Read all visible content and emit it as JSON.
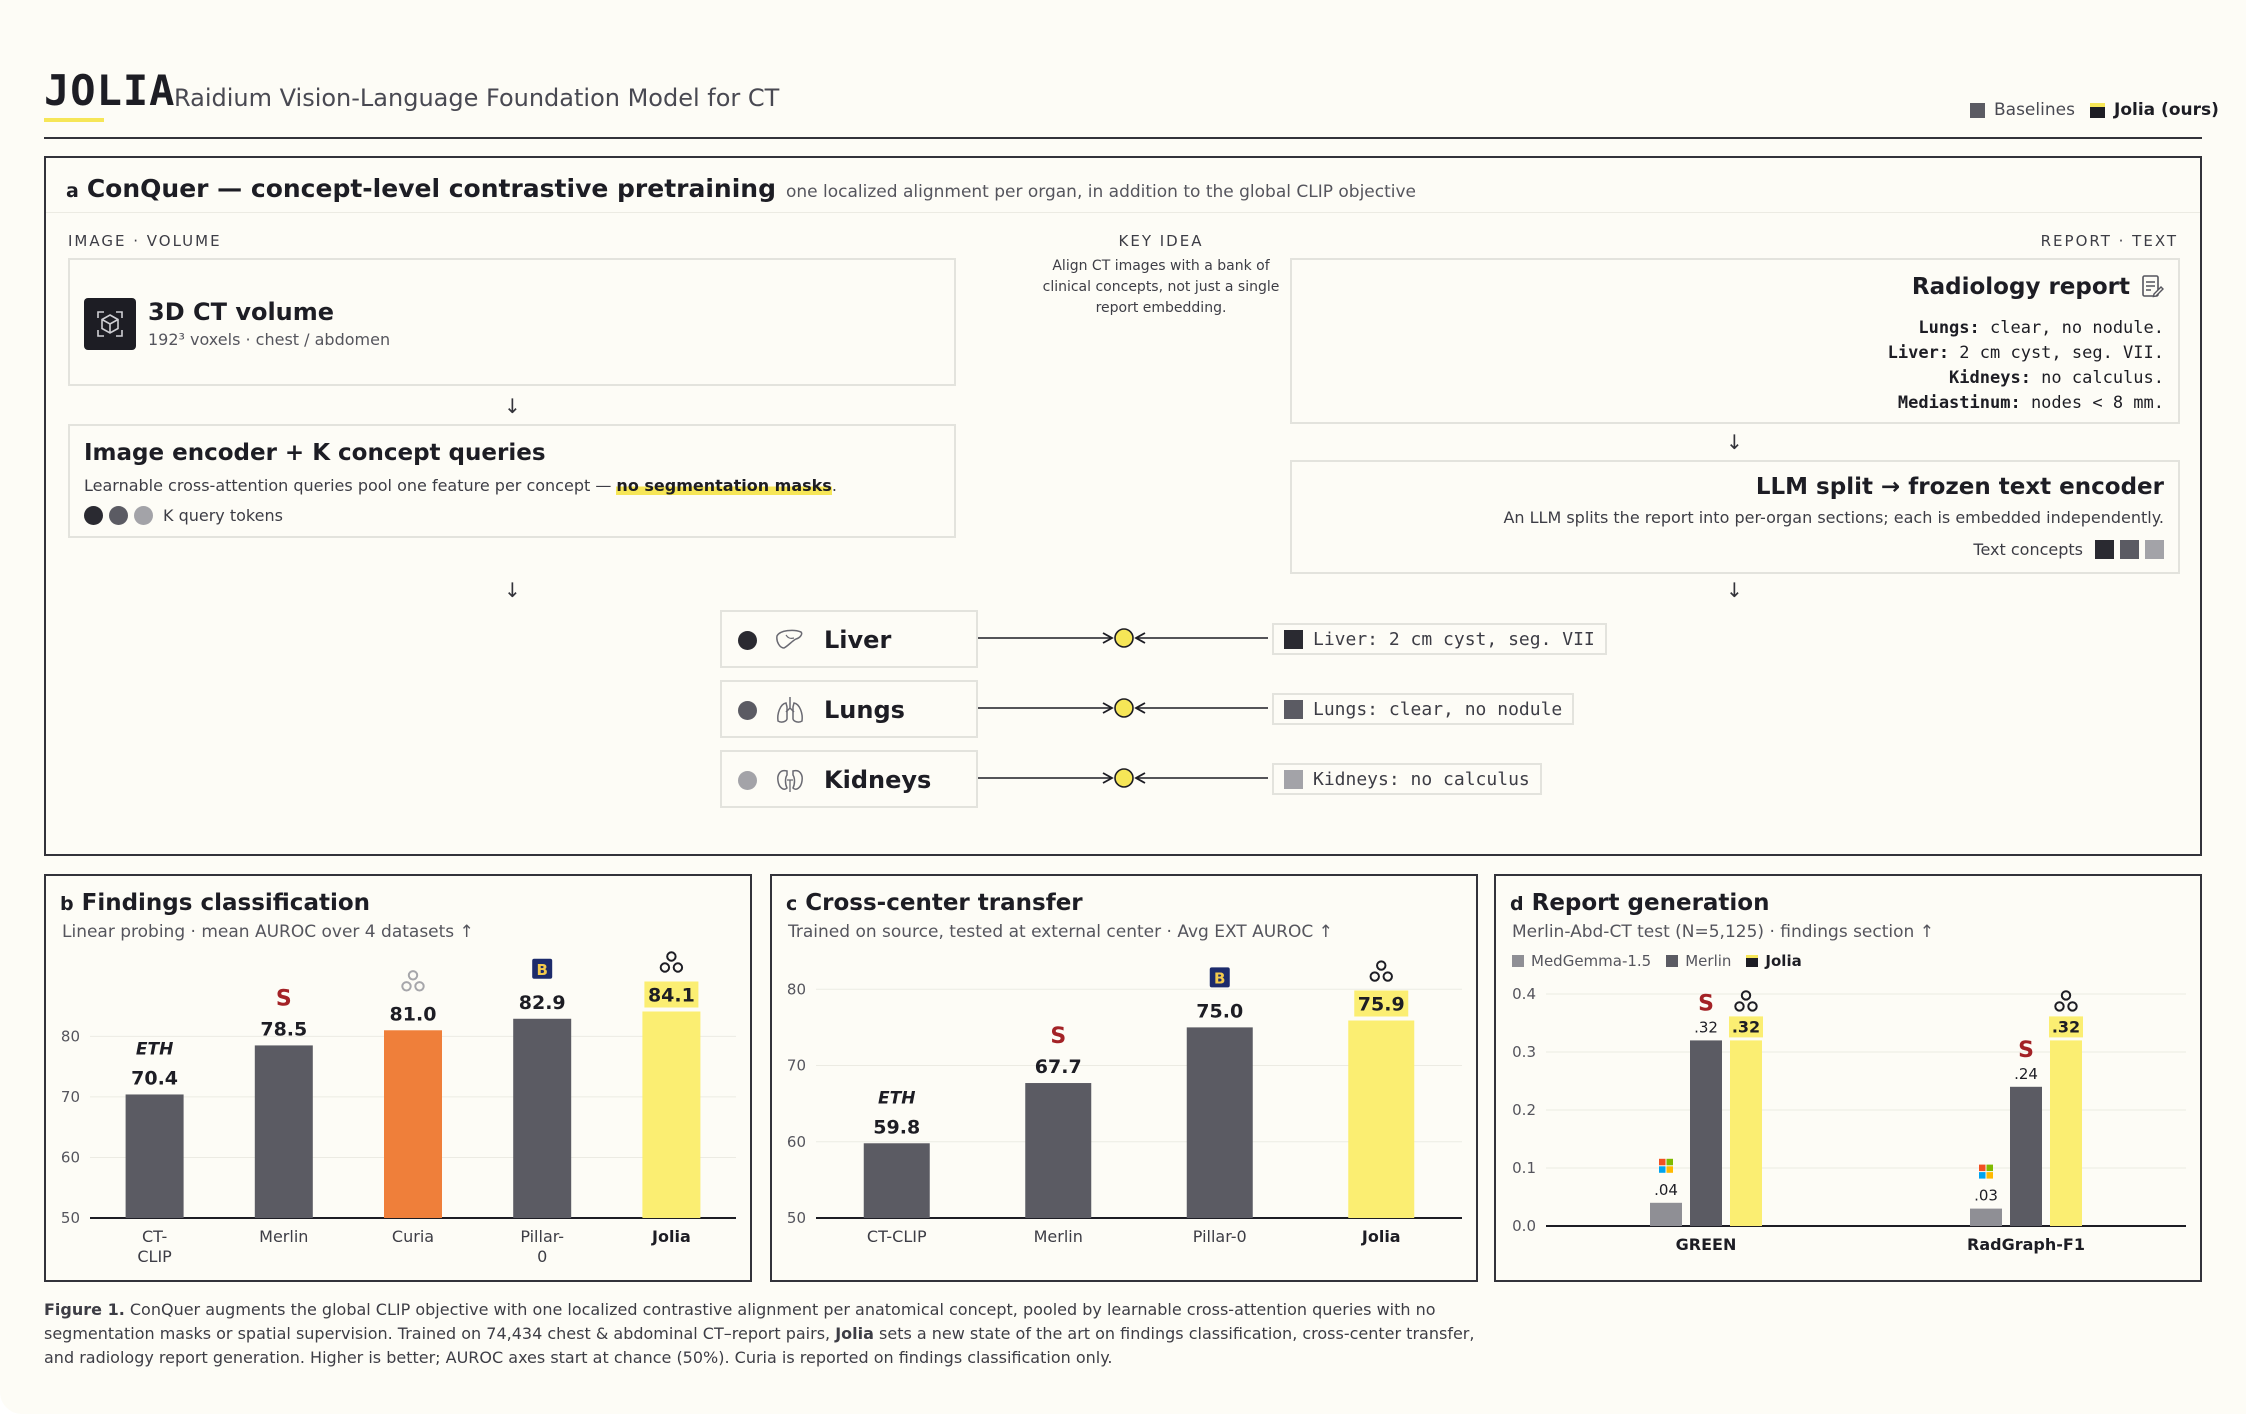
{
  "header": {
    "logo": "JOLIA",
    "subtitle": "Raidium Vision-Language Foundation Model for CT",
    "legend": [
      {
        "label": "Baselines",
        "color": "#5b5b63"
      },
      {
        "label": "Jolia (ours)",
        "color": "#1d1d24"
      }
    ]
  },
  "panel_a": {
    "letter": "a",
    "title": "ConQuer — concept-level contrastive pretraining",
    "subtitle": "one localized alignment per organ, in addition to the global CLIP objective",
    "image_label": "IMAGE · VOLUME",
    "key_idea_label": "KEY IDEA",
    "key_idea_text": "Align CT images with a bank of clinical concepts, not just a single report embedding.",
    "report_label": "REPORT · TEXT",
    "ct_box": {
      "title": "3D CT volume",
      "desc": "192³ voxels · chest / abdomen"
    },
    "encoder_box": {
      "title": "Image encoder + K concept queries",
      "desc_pre": "Learnable cross-attention queries pool one feature per concept — ",
      "desc_hl": "no segmentation masks",
      "desc_post": ".",
      "tokens_label": "K query tokens"
    },
    "report_box": {
      "title": "Radiology report",
      "lines": [
        {
          "key": "Lungs:",
          "val": " clear, no nodule."
        },
        {
          "key": "Liver:",
          "val": " 2 cm cyst, seg. VII."
        },
        {
          "key": "Kidneys:",
          "val": " no calculus."
        },
        {
          "key": "Mediastinum:",
          "val": " nodes < 8 mm."
        }
      ]
    },
    "llm_box": {
      "title": "LLM split → frozen text encoder",
      "desc": "An LLM splits the report into per-organ sections; each is embedded independently.",
      "concepts_label": "Text concepts"
    },
    "organs": [
      {
        "name": "Liver",
        "icon": "liver-icon",
        "color": "#2a2a31",
        "text": "Liver: 2 cm cyst, seg. VII"
      },
      {
        "name": "Lungs",
        "icon": "lungs-icon",
        "color": "#5b5b63",
        "text": "Lungs: clear, no nodule"
      },
      {
        "name": "Kidneys",
        "icon": "kidneys-icon",
        "color": "#a3a3a8",
        "text": "Kidneys: no calculus"
      }
    ]
  },
  "panel_b": {
    "letter": "b",
    "title": "Findings classification",
    "subtitle": "Linear probing · mean AUROC over 4 datasets ↑",
    "chart_data": {
      "type": "bar",
      "categories": [
        "CT-CLIP",
        "Merlin",
        "Curia",
        "Pillar-0",
        "Jolia"
      ],
      "values": [
        70.4,
        78.5,
        81.0,
        82.9,
        84.1
      ],
      "labels": [
        "70.4",
        "78.5",
        "81.0",
        "82.9",
        "84.1"
      ],
      "ylim": [
        50,
        86
      ],
      "yticks": [
        "50",
        "60",
        "70",
        "80"
      ],
      "colors": [
        "#5b5b63",
        "#5b5b63",
        "#ef7f3a",
        "#5b5b63",
        "#fbee72"
      ],
      "logos": [
        "ETH",
        "stanford",
        "curia",
        "B",
        "jolia"
      ]
    }
  },
  "panel_c": {
    "letter": "c",
    "title": "Cross-center transfer",
    "subtitle": "Trained on source, tested at external center · Avg EXT AUROC ↑",
    "chart_data": {
      "type": "bar",
      "categories": [
        "CT-CLIP",
        "Merlin",
        "Pillar-0",
        "Jolia"
      ],
      "values": [
        59.8,
        67.7,
        75.0,
        75.9
      ],
      "labels": [
        "59.8",
        "67.7",
        "75.0",
        "75.9"
      ],
      "ylim": [
        50,
        82
      ],
      "yticks": [
        "50",
        "60",
        "70",
        "80"
      ],
      "colors": [
        "#5b5b63",
        "#5b5b63",
        "#5b5b63",
        "#fbee72"
      ],
      "logos": [
        "ETH",
        "stanford",
        "B",
        "jolia"
      ]
    }
  },
  "panel_d": {
    "letter": "d",
    "title": "Report generation",
    "subtitle": "Merlin-Abd-CT test (N=5,125) · findings section ↑",
    "chart_data": {
      "type": "bar",
      "categories": [
        "GREEN",
        "RadGraph-F1"
      ],
      "series": [
        {
          "name": "MedGemma-1.5",
          "values": [
            0.04,
            0.03
          ],
          "labels": [
            ".04",
            ".03"
          ],
          "color": "#8f8f95",
          "logo": "microsoft"
        },
        {
          "name": "Merlin",
          "values": [
            0.32,
            0.24
          ],
          "labels": [
            ".32",
            ".24"
          ],
          "color": "#5b5b63",
          "logo": "stanford"
        },
        {
          "name": "Jolia",
          "values": [
            0.32,
            0.32
          ],
          "labels": [
            ".32",
            ".32"
          ],
          "color": "#fbee72",
          "logo": "jolia"
        }
      ],
      "ylim": [
        0,
        0.4
      ],
      "yticks": [
        "0.0",
        "0.1",
        "0.2",
        "0.3",
        "0.4"
      ],
      "legend_colors": [
        "#8f8f95",
        "#5b5b63",
        "#1d1d24"
      ]
    }
  },
  "caption": {
    "label": "Figure 1.",
    "part1": " ConQuer augments the global CLIP objective with one localized contrastive alignment per anatomical concept, pooled by learnable cross-attention queries with no segmentation masks or spatial supervision. Trained on 74,434 chest & abdominal CT–report pairs, ",
    "bold": "Jolia",
    "part2": " sets a new state of the art on findings classification, cross-center transfer, and radiology report generation. Higher is better; AUROC axes start at chance (50%). Curia is reported on findings classification only."
  }
}
